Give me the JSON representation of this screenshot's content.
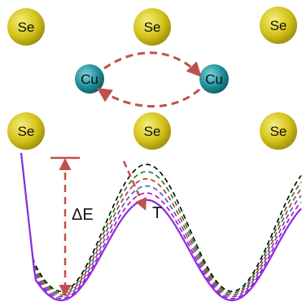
{
  "atoms": {
    "se_label": "Se",
    "cu_label": "Cu",
    "se_color": "#d4c21a",
    "se_highlight": "#f6ee7a",
    "cu_color": "#1f8f99",
    "cu_highlight": "#7fd4dc"
  },
  "annotations": {
    "energy_barrier": "ΔE",
    "temperature": "T",
    "arrow_color": "#c0504d"
  },
  "curves": {
    "style_note": "",
    "colors": [
      "#000000",
      "#1a7a1a",
      "#c03030",
      "#3060c0",
      "#c000c0",
      "#8a2be2"
    ]
  }
}
